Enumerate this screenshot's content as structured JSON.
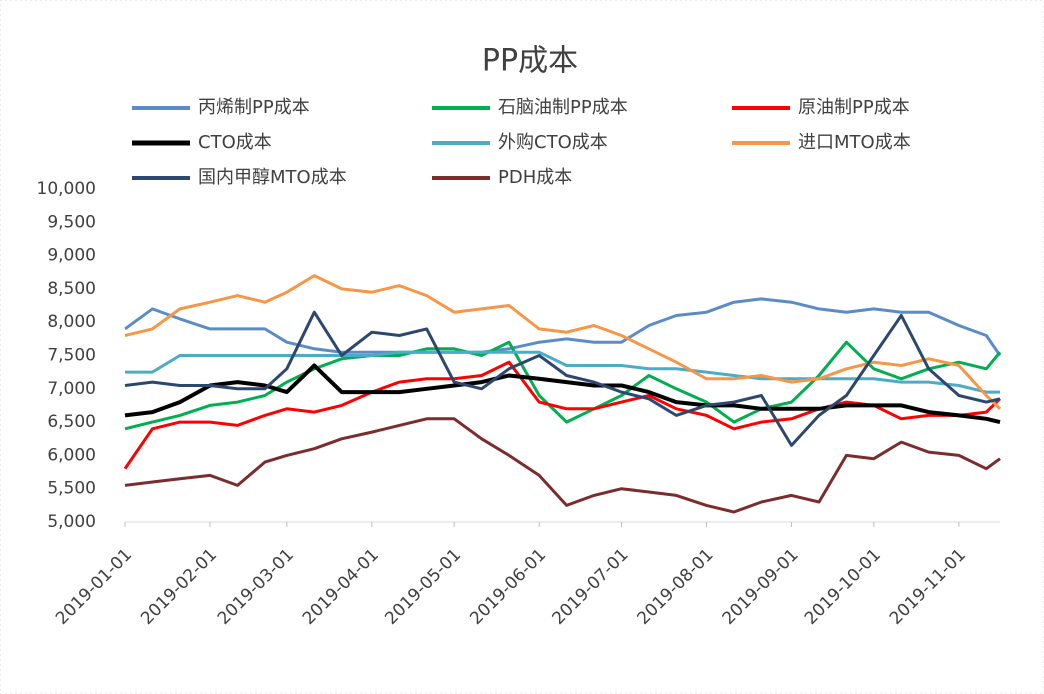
{
  "chart_data": {
    "type": "line",
    "title": "PP成本",
    "x": [
      "2019-01-01",
      "2019-01-11",
      "2019-01-21",
      "2019-02-01",
      "2019-02-11",
      "2019-02-21",
      "2019-03-01",
      "2019-03-11",
      "2019-03-21",
      "2019-04-01",
      "2019-04-11",
      "2019-04-21",
      "2019-05-01",
      "2019-05-11",
      "2019-05-21",
      "2019-06-01",
      "2019-06-11",
      "2019-06-21",
      "2019-07-01",
      "2019-07-11",
      "2019-07-21",
      "2019-08-01",
      "2019-08-11",
      "2019-08-21",
      "2019-09-01",
      "2019-09-11",
      "2019-09-21",
      "2019-10-01",
      "2019-10-11",
      "2019-10-21",
      "2019-11-01",
      "2019-11-11",
      "2019-11-16"
    ],
    "xlim": [
      "2019-01-01",
      "2019-11-16"
    ],
    "xticks": [
      "2019-01-01",
      "2019-02-01",
      "2019-03-01",
      "2019-04-01",
      "2019-05-01",
      "2019-06-01",
      "2019-07-01",
      "2019-08-01",
      "2019-09-01",
      "2019-10-01",
      "2019-11-01"
    ],
    "ylim": [
      5000,
      10000
    ],
    "yticks": [
      {
        "value": 5000,
        "label": "5,000"
      },
      {
        "value": 5500,
        "label": "5,500"
      },
      {
        "value": 6000,
        "label": "6,000"
      },
      {
        "value": 6500,
        "label": "6,500"
      },
      {
        "value": 7000,
        "label": "7,000"
      },
      {
        "value": 7500,
        "label": "7,500"
      },
      {
        "value": 8000,
        "label": "8,000"
      },
      {
        "value": 8500,
        "label": "8,500"
      },
      {
        "value": 9000,
        "label": "9,000"
      },
      {
        "value": 9500,
        "label": "9,500"
      },
      {
        "value": 10000,
        "label": "10,000"
      }
    ],
    "series": [
      {
        "name": "丙烯制PP成本",
        "color": "#5b8cc8",
        "values": [
          7900,
          8200,
          8050,
          7900,
          7900,
          7900,
          7700,
          7600,
          7550,
          7550,
          7550,
          7550,
          7550,
          7550,
          7600,
          7700,
          7750,
          7700,
          7700,
          7950,
          8100,
          8150,
          8300,
          8350,
          8300,
          8200,
          8150,
          8200,
          8150,
          8150,
          7950,
          7800,
          7500
        ]
      },
      {
        "name": "石脑油制PP成本",
        "color": "#00b050",
        "values": [
          6400,
          6500,
          6600,
          6750,
          6800,
          6900,
          7100,
          7300,
          7450,
          7500,
          7500,
          7600,
          7600,
          7500,
          7700,
          6900,
          6500,
          6700,
          6900,
          7200,
          7000,
          6800,
          6500,
          6700,
          6800,
          7200,
          7700,
          7300,
          7150,
          7300,
          7400,
          7300,
          7550
        ]
      },
      {
        "name": "原油制PP成本",
        "color": "#ff0000",
        "values": [
          5800,
          6400,
          6500,
          6500,
          6450,
          6600,
          6700,
          6650,
          6750,
          6950,
          7100,
          7150,
          7150,
          7200,
          7400,
          6800,
          6700,
          6700,
          6800,
          6900,
          6700,
          6600,
          6400,
          6500,
          6550,
          6700,
          6800,
          6750,
          6550,
          6600,
          6600,
          6650,
          6850
        ]
      },
      {
        "name": "CTO成本",
        "color": "#000000",
        "values": [
          6600,
          6650,
          6800,
          7050,
          7100,
          7050,
          6950,
          7350,
          6950,
          6950,
          6950,
          7000,
          7050,
          7100,
          7200,
          7150,
          7100,
          7050,
          7050,
          6950,
          6800,
          6750,
          6750,
          6700,
          6700,
          6700,
          6750,
          6750,
          6750,
          6650,
          6600,
          6550,
          6500
        ]
      },
      {
        "name": "外购CTO成本",
        "color": "#4bacc6",
        "values": [
          7250,
          7250,
          7500,
          7500,
          7500,
          7500,
          7500,
          7500,
          7500,
          7500,
          7550,
          7550,
          7550,
          7550,
          7550,
          7550,
          7350,
          7350,
          7350,
          7300,
          7300,
          7250,
          7200,
          7150,
          7150,
          7150,
          7150,
          7150,
          7100,
          7100,
          7050,
          6950,
          6950
        ]
      },
      {
        "name": "进口MTO成本",
        "color": "#f79646",
        "values": [
          7800,
          7900,
          8200,
          8300,
          8400,
          8300,
          8450,
          8700,
          8500,
          8450,
          8550,
          8400,
          8150,
          8200,
          8250,
          7900,
          7850,
          7950,
          7800,
          7600,
          7400,
          7150,
          7150,
          7200,
          7100,
          7150,
          7300,
          7400,
          7350,
          7450,
          7350,
          6900,
          6700
        ]
      },
      {
        "name": "国内甲醇MTO成本",
        "color": "#2c4770",
        "values": [
          7050,
          7100,
          7050,
          7050,
          7000,
          7000,
          7300,
          8150,
          7500,
          7850,
          7800,
          7900,
          7100,
          7000,
          7300,
          7500,
          7200,
          7100,
          6950,
          6850,
          6600,
          6750,
          6800,
          6900,
          6150,
          6600,
          6900,
          7500,
          8100,
          7300,
          6900,
          6800,
          6850
        ]
      },
      {
        "name": "PDH成本",
        "color": "#7b2c2c",
        "values": [
          5550,
          5600,
          5650,
          5700,
          5550,
          5900,
          6000,
          6100,
          6250,
          6350,
          6450,
          6550,
          6550,
          6250,
          6000,
          5700,
          5250,
          5400,
          5500,
          5450,
          5400,
          5250,
          5150,
          5300,
          5400,
          5300,
          6000,
          5950,
          6200,
          6050,
          6000,
          5800,
          5950
        ]
      }
    ]
  }
}
